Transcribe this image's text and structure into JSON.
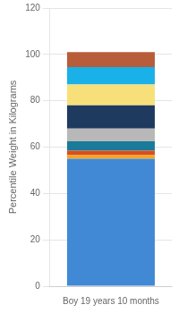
{
  "chart_data": {
    "type": "bar",
    "stacked": true,
    "categories": [
      "Boy 19 years 10 months"
    ],
    "series": [
      {
        "color": "#4189d4",
        "values": [
          55.0
        ]
      },
      {
        "color": "#f5a623",
        "values": [
          1.5
        ]
      },
      {
        "color": "#d94f1e",
        "values": [
          2.0
        ]
      },
      {
        "color": "#1a7a9a",
        "values": [
          4.0
        ]
      },
      {
        "color": "#b8b8b8",
        "values": [
          5.5
        ]
      },
      {
        "color": "#1f3a5f",
        "values": [
          10.0
        ]
      },
      {
        "color": "#f7e07a",
        "values": [
          9.0
        ]
      },
      {
        "color": "#1ab0e8",
        "values": [
          7.5
        ]
      },
      {
        "color": "#b85c3a",
        "values": [
          6.5
        ]
      }
    ],
    "ylabel": "Percentile Weight in Kilograms",
    "ylim": [
      0,
      120
    ],
    "yticks": [
      0,
      20,
      40,
      60,
      80,
      100,
      120
    ],
    "grid": true
  }
}
